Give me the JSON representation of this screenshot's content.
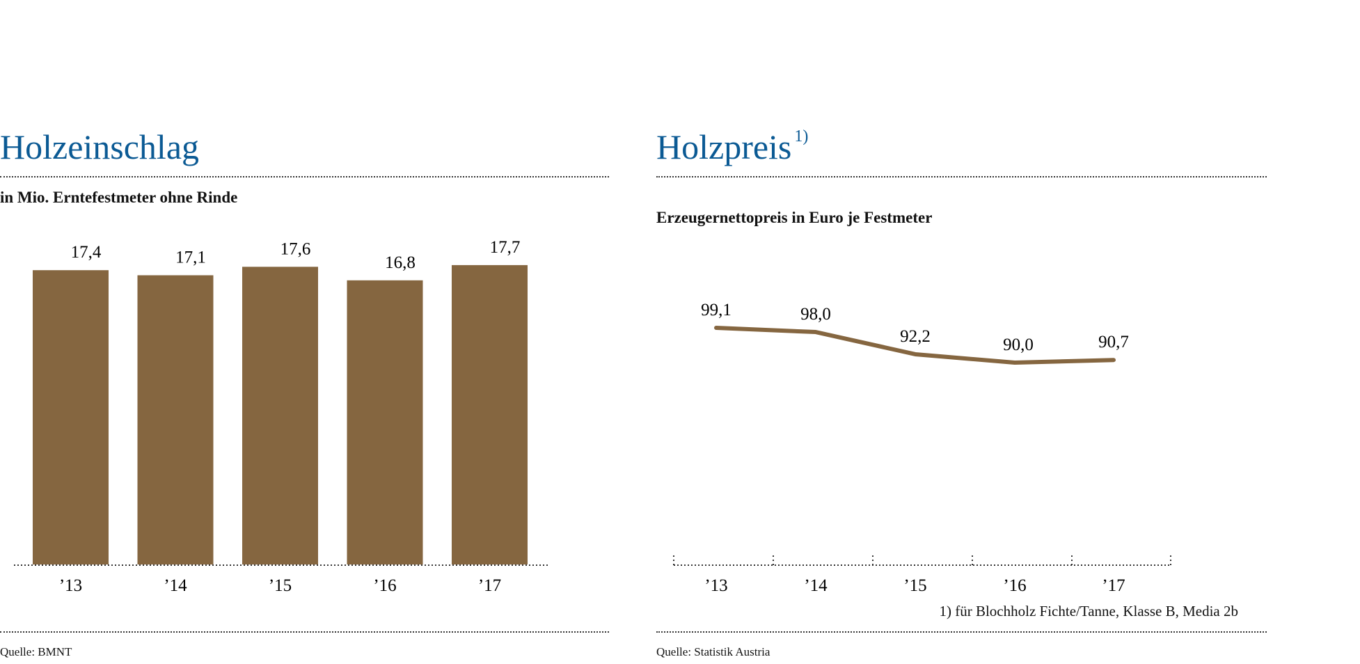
{
  "colors": {
    "title": "#0b5a94",
    "mark": "#856640"
  },
  "chart_data": [
    {
      "type": "bar",
      "title": "Holzeinschlag",
      "subtitle": "in Mio. Erntefestmeter ohne Rinde",
      "categories": [
        "’13",
        "’14",
        "’15",
        "’16",
        "’17"
      ],
      "values": [
        17.4,
        17.1,
        17.6,
        16.8,
        17.7
      ],
      "data_labels": [
        "17,4",
        "17,1",
        "17,6",
        "16,8",
        "17,7"
      ],
      "ylim": [
        0,
        17.7
      ],
      "grid": false,
      "source": "Quelle: BMNT"
    },
    {
      "type": "line",
      "title": "Holzpreis",
      "title_superscript": "1)",
      "subtitle": "Erzeugernettopreis in Euro je Festmeter",
      "categories": [
        "’13",
        "’14",
        "’15",
        "’16",
        "’17"
      ],
      "values": [
        99.1,
        98.0,
        92.2,
        90.0,
        90.7
      ],
      "data_labels": [
        "99,1",
        "98,0",
        "92,2",
        "90,0",
        "90,7"
      ],
      "grid": false,
      "footnote": "1) für Blochholz Fichte/Tanne, Klasse B, Media 2b",
      "source": "Quelle: Statistik Austria"
    }
  ]
}
